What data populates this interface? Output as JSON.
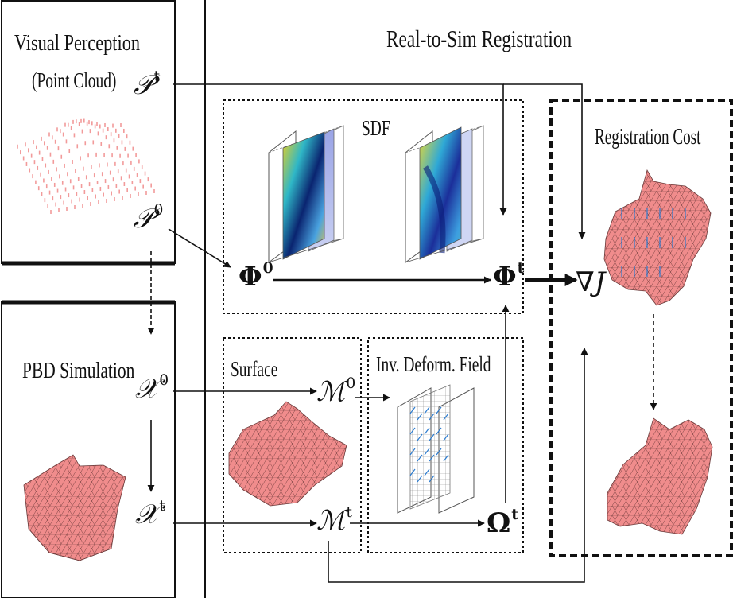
{
  "panels": {
    "visual_perception": {
      "title_line1": "Visual Perception",
      "title_line2": "(Point Cloud)"
    },
    "pbd_simulation": {
      "title": "PBD Simulation"
    },
    "real_to_sim": {
      "title": "Real-to-Sim Registration"
    },
    "sdf": {
      "title": "SDF"
    },
    "surface": {
      "title": "Surface"
    },
    "inv_deform": {
      "title": "Inv. Deform. Field"
    },
    "registration_cost": {
      "title": "Registration Cost"
    }
  },
  "symbols": {
    "p_t": {
      "base": "𝒫",
      "sup": "t"
    },
    "p_0": {
      "base": "𝒫",
      "sup": "0"
    },
    "chi_0": {
      "base": "𝒳",
      "sup": "0"
    },
    "chi_t": {
      "base": "𝒳",
      "sup": "t"
    },
    "phi_0": {
      "base": "Φ",
      "sup": "0"
    },
    "phi_t": {
      "base": "Φ",
      "sup": "t"
    },
    "m_0": {
      "base": "ℳ",
      "sup": "0"
    },
    "m_t": {
      "base": "ℳ",
      "sup": "t"
    },
    "omega_t": {
      "base": "Ω",
      "sup": "t"
    },
    "grad_j": "∇J"
  },
  "colors": {
    "mesh_fill": "#f08c8c",
    "mesh_line": "#4a2a2a",
    "point_cloud": "#f29a9a",
    "deform_arrows": "#2a7bd0"
  }
}
